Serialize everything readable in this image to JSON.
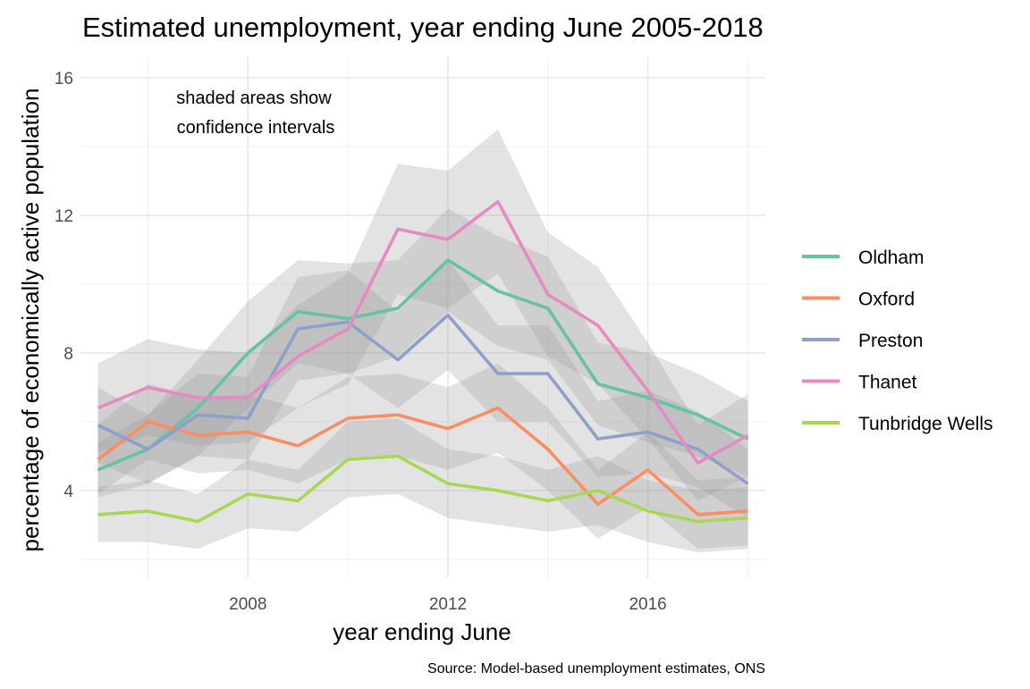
{
  "chart_data": {
    "type": "line",
    "title": "Estimated unemployment, year ending June 2005-2018",
    "xlabel": "year ending June",
    "ylabel": "percentage of economically active population",
    "caption": "Source: Model-based unemployment estimates, ONS",
    "annotation": [
      "shaded areas show",
      "confidence intervals"
    ],
    "x": [
      2005,
      2006,
      2007,
      2008,
      2009,
      2010,
      2011,
      2012,
      2013,
      2014,
      2015,
      2016,
      2017,
      2018
    ],
    "xlim": [
      2004.65,
      2018.35
    ],
    "ylim": [
      1.45,
      16.6
    ],
    "xticks": [
      2008,
      2012,
      2016
    ],
    "yticks": [
      4,
      8,
      12,
      16
    ],
    "grid": true,
    "legend_position": "right",
    "band_color": "#999999",
    "series": [
      {
        "name": "Oldham",
        "color": "#66C2A5",
        "values": [
          4.6,
          5.2,
          6.4,
          8.0,
          9.2,
          9.0,
          9.3,
          10.7,
          9.8,
          9.3,
          7.1,
          6.7,
          6.2,
          5.5
        ],
        "lower": [
          3.8,
          4.2,
          5.0,
          6.4,
          7.7,
          7.4,
          7.9,
          9.2,
          8.2,
          7.8,
          5.9,
          5.4,
          5.0,
          4.4
        ],
        "upper": [
          5.4,
          6.2,
          7.8,
          9.5,
          10.7,
          10.6,
          10.7,
          12.2,
          11.4,
          10.8,
          8.3,
          8.0,
          7.4,
          6.6
        ]
      },
      {
        "name": "Oxford",
        "color": "#FC8D62",
        "values": [
          4.9,
          6.0,
          5.6,
          5.7,
          5.3,
          6.1,
          6.2,
          5.8,
          6.4,
          5.2,
          3.6,
          4.6,
          3.3,
          3.4
        ],
        "lower": [
          3.9,
          4.9,
          4.5,
          4.6,
          4.2,
          4.9,
          5.0,
          4.6,
          5.1,
          4.0,
          2.6,
          3.5,
          2.3,
          2.4
        ],
        "upper": [
          5.9,
          7.1,
          6.7,
          6.8,
          6.4,
          7.3,
          7.4,
          7.0,
          7.7,
          6.4,
          4.6,
          5.7,
          4.3,
          4.4
        ]
      },
      {
        "name": "Preston",
        "color": "#8DA0CB",
        "values": [
          5.9,
          5.2,
          6.2,
          6.1,
          8.7,
          8.9,
          7.8,
          9.1,
          7.4,
          7.4,
          5.5,
          5.7,
          5.2,
          4.2
        ],
        "lower": [
          4.8,
          4.2,
          5.0,
          4.9,
          7.2,
          7.4,
          6.4,
          7.5,
          6.0,
          6.0,
          4.4,
          4.5,
          4.1,
          3.2
        ],
        "upper": [
          7.0,
          6.2,
          7.4,
          7.3,
          10.2,
          10.4,
          9.2,
          10.7,
          8.8,
          8.8,
          6.6,
          6.9,
          6.3,
          5.2
        ]
      },
      {
        "name": "Thanet",
        "color": "#E78AC3",
        "values": [
          6.4,
          7.0,
          6.7,
          6.7,
          7.9,
          8.7,
          11.6,
          11.3,
          12.4,
          9.7,
          8.8,
          6.9,
          4.8,
          5.6
        ],
        "lower": [
          5.1,
          5.6,
          5.3,
          5.4,
          6.4,
          7.1,
          9.7,
          9.3,
          10.3,
          7.9,
          7.1,
          5.5,
          3.7,
          4.4
        ],
        "upper": [
          7.7,
          8.4,
          8.1,
          8.0,
          9.4,
          10.3,
          13.5,
          13.3,
          14.5,
          11.5,
          10.5,
          8.3,
          5.9,
          6.8
        ]
      },
      {
        "name": "Tunbridge Wells",
        "color": "#A6D854",
        "values": [
          3.3,
          3.4,
          3.1,
          3.9,
          3.7,
          4.9,
          5.0,
          4.2,
          4.0,
          3.7,
          4.0,
          3.4,
          3.1,
          3.2
        ],
        "lower": [
          2.5,
          2.5,
          2.3,
          2.9,
          2.8,
          3.8,
          3.9,
          3.2,
          3.0,
          2.8,
          3.0,
          2.5,
          2.2,
          2.3
        ],
        "upper": [
          4.1,
          4.3,
          3.9,
          4.9,
          4.6,
          6.0,
          6.1,
          5.2,
          5.0,
          4.6,
          5.0,
          4.3,
          4.0,
          4.1
        ]
      }
    ]
  }
}
